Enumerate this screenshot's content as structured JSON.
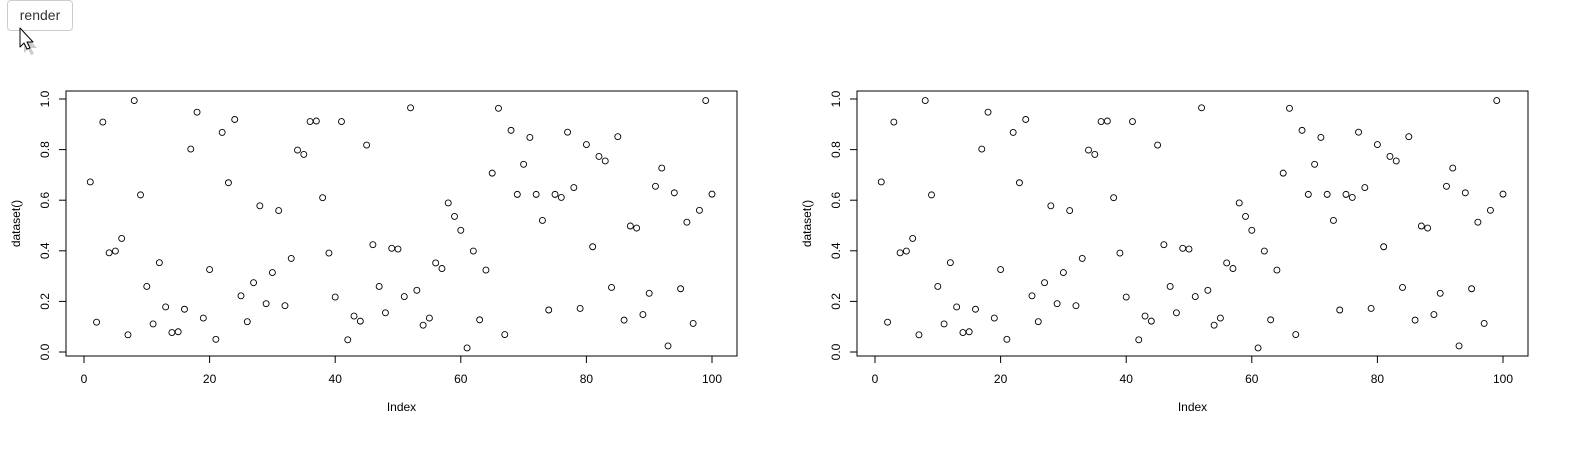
{
  "toolbar": {
    "render_label": "render"
  },
  "icons": {
    "cursor": "mouse-pointer-icon"
  },
  "colors": {
    "point_stroke": "#000000",
    "axis": "#000000",
    "button_border": "#cccccc"
  },
  "chart_data": [
    {
      "type": "scatter",
      "title": "",
      "xlabel": "Index",
      "ylabel": "dataset()",
      "xlim": [
        0,
        100
      ],
      "ylim": [
        0,
        1
      ],
      "xticks": [
        0,
        20,
        40,
        60,
        80,
        100
      ],
      "yticks": [
        0.0,
        0.2,
        0.4,
        0.6,
        0.8,
        1.0
      ],
      "ytick_labels": [
        "0.0",
        "0.2",
        "0.4",
        "0.6",
        "0.8",
        "1.0"
      ],
      "grid": false,
      "x": [
        1,
        2,
        3,
        4,
        5,
        6,
        7,
        8,
        9,
        10,
        11,
        12,
        13,
        14,
        15,
        16,
        17,
        18,
        19,
        20,
        21,
        22,
        23,
        24,
        25,
        26,
        27,
        28,
        29,
        30,
        31,
        32,
        33,
        34,
        35,
        36,
        37,
        38,
        39,
        40,
        41,
        42,
        43,
        44,
        45,
        46,
        47,
        48,
        49,
        50,
        51,
        52,
        53,
        54,
        55,
        56,
        57,
        58,
        59,
        60,
        61,
        62,
        63,
        64,
        65,
        66,
        67,
        68,
        69,
        70,
        71,
        72,
        73,
        74,
        75,
        76,
        77,
        78,
        79,
        80,
        81,
        82,
        83,
        84,
        85,
        86,
        87,
        88,
        89,
        90,
        91,
        92,
        93,
        94,
        95,
        96,
        97,
        98,
        99,
        100
      ],
      "y": [
        0.672,
        0.118,
        0.909,
        0.392,
        0.399,
        0.449,
        0.068,
        0.994,
        0.621,
        0.259,
        0.111,
        0.353,
        0.178,
        0.077,
        0.08,
        0.169,
        0.802,
        0.948,
        0.134,
        0.326,
        0.05,
        0.868,
        0.669,
        0.919,
        0.222,
        0.12,
        0.274,
        0.578,
        0.191,
        0.314,
        0.559,
        0.183,
        0.37,
        0.798,
        0.781,
        0.911,
        0.913,
        0.61,
        0.391,
        0.217,
        0.911,
        0.048,
        0.142,
        0.122,
        0.818,
        0.424,
        0.259,
        0.155,
        0.41,
        0.407,
        0.219,
        0.965,
        0.244,
        0.106,
        0.134,
        0.352,
        0.33,
        0.589,
        0.536,
        0.481,
        0.016,
        0.399,
        0.127,
        0.324,
        0.707,
        0.963,
        0.069,
        0.876,
        0.623,
        0.742,
        0.848,
        0.623,
        0.52,
        0.166,
        0.623,
        0.611,
        0.869,
        0.65,
        0.172,
        0.82,
        0.416,
        0.773,
        0.755,
        0.255,
        0.851,
        0.126,
        0.498,
        0.49,
        0.148,
        0.232,
        0.655,
        0.727,
        0.024,
        0.629,
        0.25,
        0.513,
        0.113,
        0.56,
        0.994,
        0.624
      ]
    },
    {
      "type": "scatter",
      "title": "",
      "xlabel": "Index",
      "ylabel": "dataset()",
      "xlim": [
        0,
        100
      ],
      "ylim": [
        0,
        1
      ],
      "xticks": [
        0,
        20,
        40,
        60,
        80,
        100
      ],
      "yticks": [
        0.0,
        0.2,
        0.4,
        0.6,
        0.8,
        1.0
      ],
      "ytick_labels": [
        "0.0",
        "0.2",
        "0.4",
        "0.6",
        "0.8",
        "1.0"
      ],
      "grid": false,
      "x": [
        1,
        2,
        3,
        4,
        5,
        6,
        7,
        8,
        9,
        10,
        11,
        12,
        13,
        14,
        15,
        16,
        17,
        18,
        19,
        20,
        21,
        22,
        23,
        24,
        25,
        26,
        27,
        28,
        29,
        30,
        31,
        32,
        33,
        34,
        35,
        36,
        37,
        38,
        39,
        40,
        41,
        42,
        43,
        44,
        45,
        46,
        47,
        48,
        49,
        50,
        51,
        52,
        53,
        54,
        55,
        56,
        57,
        58,
        59,
        60,
        61,
        62,
        63,
        64,
        65,
        66,
        67,
        68,
        69,
        70,
        71,
        72,
        73,
        74,
        75,
        76,
        77,
        78,
        79,
        80,
        81,
        82,
        83,
        84,
        85,
        86,
        87,
        88,
        89,
        90,
        91,
        92,
        93,
        94,
        95,
        96,
        97,
        98,
        99,
        100
      ],
      "y": [
        0.672,
        0.118,
        0.909,
        0.392,
        0.399,
        0.449,
        0.068,
        0.994,
        0.621,
        0.259,
        0.111,
        0.353,
        0.178,
        0.077,
        0.08,
        0.169,
        0.802,
        0.948,
        0.134,
        0.326,
        0.05,
        0.868,
        0.669,
        0.919,
        0.222,
        0.12,
        0.274,
        0.578,
        0.191,
        0.314,
        0.559,
        0.183,
        0.37,
        0.798,
        0.781,
        0.911,
        0.913,
        0.61,
        0.391,
        0.217,
        0.911,
        0.048,
        0.142,
        0.122,
        0.818,
        0.424,
        0.259,
        0.155,
        0.41,
        0.407,
        0.219,
        0.965,
        0.244,
        0.106,
        0.134,
        0.352,
        0.33,
        0.589,
        0.536,
        0.481,
        0.016,
        0.399,
        0.127,
        0.324,
        0.707,
        0.963,
        0.069,
        0.876,
        0.623,
        0.742,
        0.848,
        0.623,
        0.52,
        0.166,
        0.623,
        0.611,
        0.869,
        0.65,
        0.172,
        0.82,
        0.416,
        0.773,
        0.755,
        0.255,
        0.851,
        0.126,
        0.498,
        0.49,
        0.148,
        0.232,
        0.655,
        0.727,
        0.024,
        0.629,
        0.25,
        0.513,
        0.113,
        0.56,
        0.994,
        0.624
      ]
    }
  ]
}
